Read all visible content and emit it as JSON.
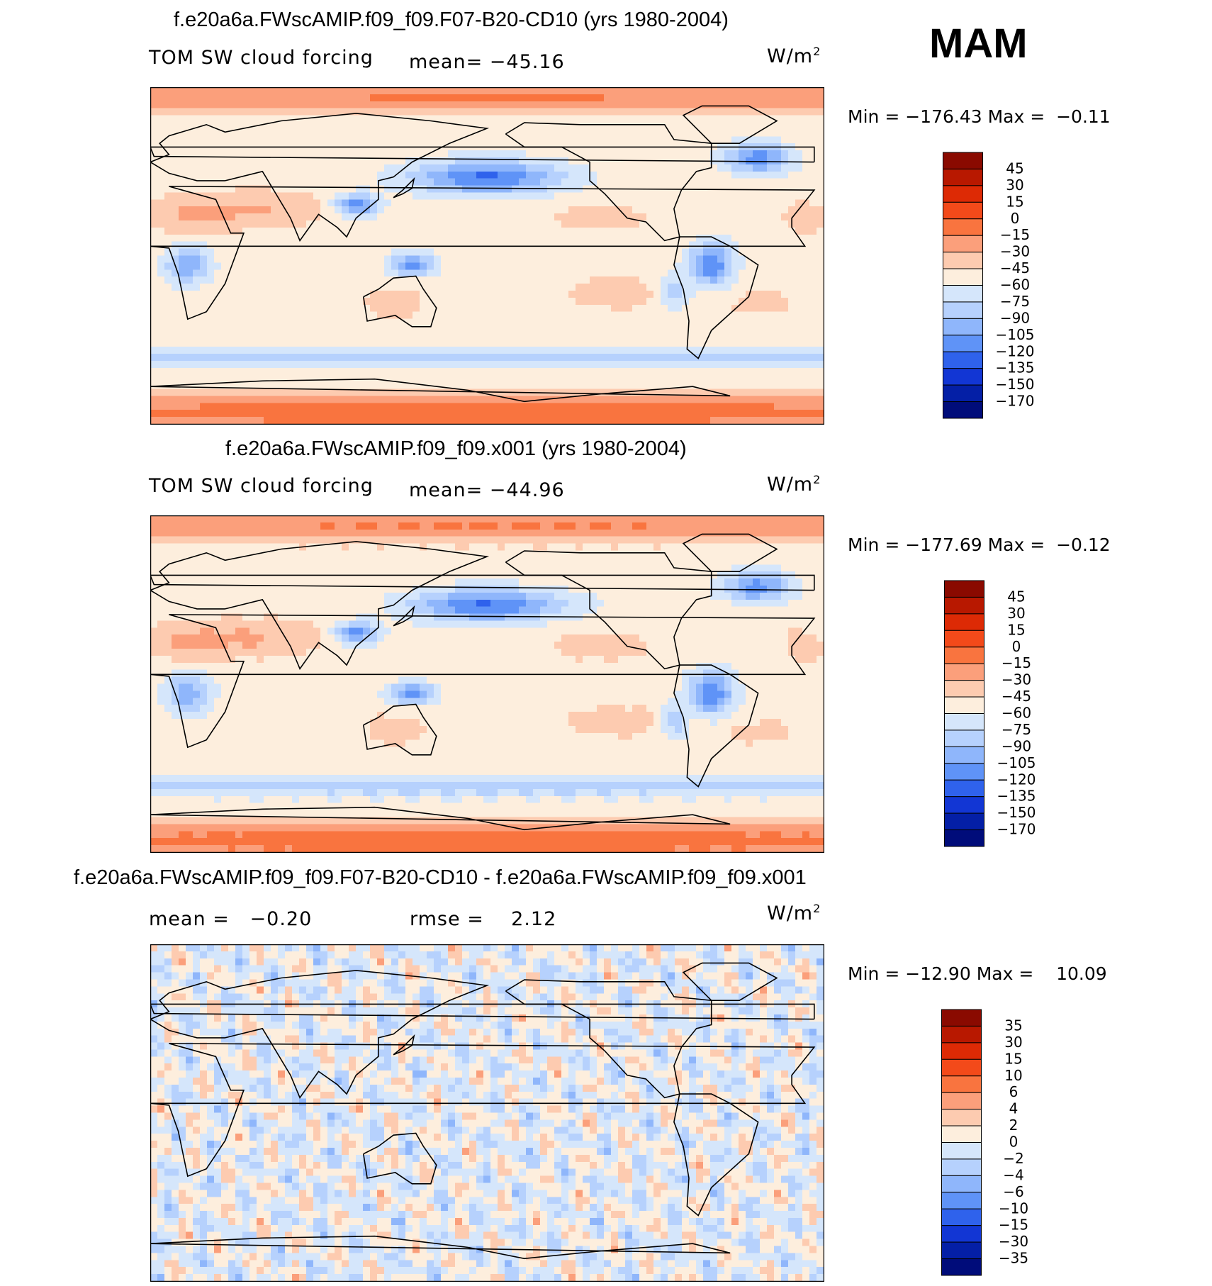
{
  "season": "MAM",
  "panels": [
    {
      "title": "f.e20a6a.FWscAMIP.f09_f09.F07-B20-CD10 (yrs 1980-2004)",
      "variable": "TOM SW cloud forcing",
      "mean_label": "mean=",
      "mean_value": "−45.16",
      "units_base": "W/m",
      "units_exp": "2",
      "min_label": "Min",
      "min_value": "−176.43",
      "max_label": "Max",
      "max_value": "−0.11"
    },
    {
      "title": "f.e20a6a.FWscAMIP.f09_f09.x001 (yrs 1980-2004)",
      "variable": "TOM SW cloud forcing",
      "mean_label": "mean=",
      "mean_value": "−44.96",
      "units_base": "W/m",
      "units_exp": "2",
      "min_label": "Min",
      "min_value": "−177.69",
      "max_label": "Max",
      "max_value": "−0.12"
    },
    {
      "title": "f.e20a6a.FWscAMIP.f09_f09.F07-B20-CD10 - f.e20a6a.FWscAMIP.f09_f09.x001",
      "mean_label": "mean =",
      "mean_value": "−0.20",
      "rmse_label": "rmse =",
      "rmse_value": "2.12",
      "units_base": "W/m",
      "units_exp": "2",
      "min_label": "Min",
      "min_value": "−12.90",
      "max_label": "Max",
      "max_value": "10.09"
    }
  ],
  "chart_data": [
    {
      "type": "heatmap",
      "title": "f.e20a6a.FWscAMIP.f09_f09.F07-B20-CD10 (yrs 1980-2004)",
      "variable": "TOM SW cloud forcing",
      "units": "W/m2",
      "mean": -45.16,
      "min": -176.43,
      "max": -0.11,
      "levels": [
        45,
        30,
        15,
        0,
        -15,
        -30,
        -45,
        -60,
        -75,
        -90,
        -105,
        -120,
        -135,
        -150,
        -170
      ],
      "level_labels": [
        "45",
        "30",
        "15",
        "0",
        "−15",
        "−30",
        "−45",
        "−60",
        "−75",
        "−90",
        "−105",
        "−120",
        "−135",
        "−150",
        "−170"
      ],
      "colors": [
        "#8a0a00",
        "#b81800",
        "#dd2a05",
        "#f34a1a",
        "#f9743f",
        "#fb9f7b",
        "#fdcbb0",
        "#fdeedd",
        "#d5e6fb",
        "#b6d1fd",
        "#8fb6fb",
        "#5f93f7",
        "#2f62ec",
        "#1236d4",
        "#041fa6",
        "#000c7a"
      ]
    },
    {
      "type": "heatmap",
      "title": "f.e20a6a.FWscAMIP.f09_f09.x001 (yrs 1980-2004)",
      "variable": "TOM SW cloud forcing",
      "units": "W/m2",
      "mean": -44.96,
      "min": -177.69,
      "max": -0.12,
      "levels": [
        45,
        30,
        15,
        0,
        -15,
        -30,
        -45,
        -60,
        -75,
        -90,
        -105,
        -120,
        -135,
        -150,
        -170
      ],
      "level_labels": [
        "45",
        "30",
        "15",
        "0",
        "−15",
        "−30",
        "−45",
        "−60",
        "−75",
        "−90",
        "−105",
        "−120",
        "−135",
        "−150",
        "−170"
      ],
      "colors": [
        "#8a0a00",
        "#b81800",
        "#dd2a05",
        "#f34a1a",
        "#f9743f",
        "#fb9f7b",
        "#fdcbb0",
        "#fdeedd",
        "#d5e6fb",
        "#b6d1fd",
        "#8fb6fb",
        "#5f93f7",
        "#2f62ec",
        "#1236d4",
        "#041fa6",
        "#000c7a"
      ]
    },
    {
      "type": "heatmap",
      "title": "f.e20a6a.FWscAMIP.f09_f09.F07-B20-CD10 - f.e20a6a.FWscAMIP.f09_f09.x001",
      "units": "W/m2",
      "mean": -0.2,
      "rmse": 2.12,
      "min": -12.9,
      "max": 10.09,
      "levels": [
        35,
        30,
        15,
        10,
        6,
        4,
        2,
        0,
        -2,
        -4,
        -6,
        -10,
        -15,
        -30,
        -35
      ],
      "level_labels": [
        "35",
        "30",
        "15",
        "10",
        "6",
        "4",
        "2",
        "0",
        "−2",
        "−4",
        "−6",
        "−10",
        "−15",
        "−30",
        "−35"
      ],
      "colors": [
        "#8a0a00",
        "#b81800",
        "#dd2a05",
        "#f34a1a",
        "#f9743f",
        "#fb9f7b",
        "#fdcbb0",
        "#fdeedd",
        "#d5e6fb",
        "#b6d1fd",
        "#8fb6fb",
        "#5f93f7",
        "#2f62ec",
        "#1236d4",
        "#041fa6",
        "#000c7a"
      ]
    }
  ]
}
